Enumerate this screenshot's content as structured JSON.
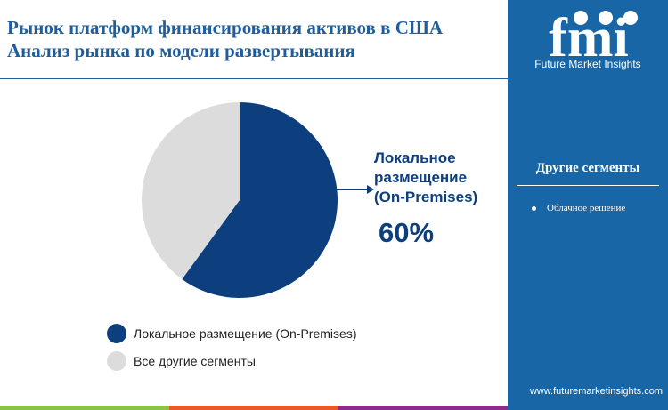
{
  "title": [
    "Рынок платформ финансирования активов в США",
    "Анализ рынка по модели развертывания"
  ],
  "brand": {
    "name": "Future Market Insights",
    "logo_text": "fmi",
    "url": "www.futuremarketinsights.com"
  },
  "side": {
    "heading": "Другие сегменты",
    "items": [
      "Облачное решение"
    ]
  },
  "colors": {
    "primary": "#0d3f7f",
    "other": "#dcdcdc",
    "panel": "#1866a6",
    "bars": [
      "#8bc34a",
      "#e95a2a",
      "#8e2d87"
    ]
  },
  "callout": {
    "label": [
      "Локальное",
      "размещение",
      "(On-Premises)"
    ],
    "value": "60%"
  },
  "chart_data": {
    "type": "pie",
    "categories": [
      "Локальное размещение (On-Premises)",
      "Все другие сегменты"
    ],
    "values": [
      60,
      40
    ],
    "legend": "bottom"
  }
}
